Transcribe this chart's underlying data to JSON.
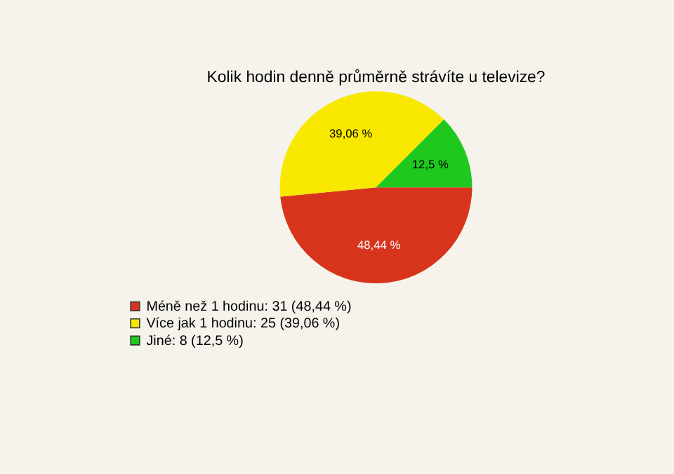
{
  "chart_data": {
    "type": "pie",
    "title": "Kolik hodin denně průměrně strávíte u televize?",
    "categories": [
      "Méně než 1 hodinu: 31 (48,44 %)",
      "Více jak 1 hodinu: 25 (39,06 %)",
      "Jiné: 8 (12,5 %)"
    ],
    "values": [
      48.44,
      39.06,
      12.5
    ],
    "colors": [
      "#d8341c",
      "#f8e800",
      "#1ec81e"
    ],
    "value_labels": [
      "48,44 %",
      "39,06 %",
      "12,5 %"
    ],
    "legend": "bottom left"
  }
}
